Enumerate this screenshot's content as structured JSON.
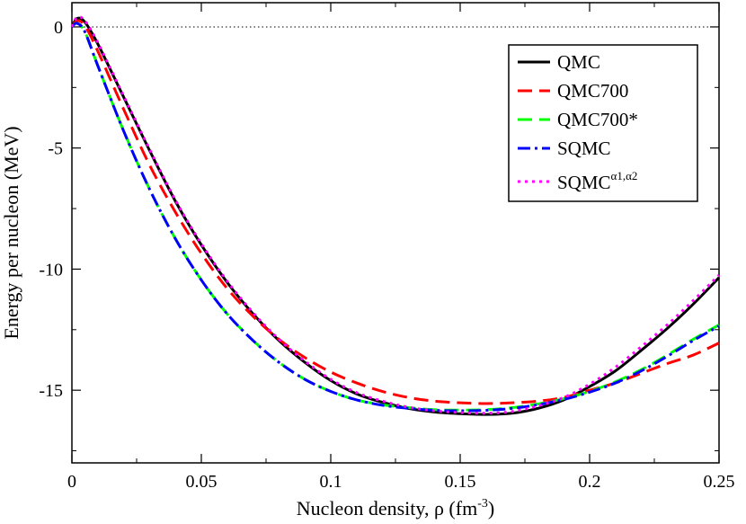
{
  "chart_data": {
    "type": "line",
    "title": "",
    "xlabel": "Nucleon density, ρ (fm",
    "xlabel_sup": "-3",
    "xlabel_close": ")",
    "ylabel": "Energy per nucleon (MeV)",
    "xlim": [
      0,
      0.25
    ],
    "ylim": [
      -18,
      1
    ],
    "x_ticks": [
      0,
      0.05,
      0.1,
      0.15,
      0.2,
      0.25
    ],
    "x_tick_labels": [
      "0",
      "0.05",
      "0.1",
      "0.15",
      "0.2",
      "0.25"
    ],
    "y_ticks": [
      0,
      -5,
      -10,
      -15
    ],
    "y_tick_labels": [
      "0",
      "-5",
      "-10",
      "-15"
    ],
    "reference_line": {
      "y": 0,
      "style": "dotted"
    },
    "legend_position": "top-right",
    "x": [
      0,
      0.002,
      0.005,
      0.01,
      0.02,
      0.03,
      0.04,
      0.05,
      0.06,
      0.07,
      0.08,
      0.09,
      0.1,
      0.11,
      0.12,
      0.13,
      0.14,
      0.15,
      0.16,
      0.17,
      0.18,
      0.19,
      0.2,
      0.21,
      0.22,
      0.23,
      0.24,
      0.25
    ],
    "series": [
      {
        "name": "QMC",
        "color": "#000000",
        "dash": "solid",
        "values": [
          0,
          0.35,
          0.2,
          -0.7,
          -2.9,
          -5.1,
          -7.2,
          -9.0,
          -10.55,
          -11.85,
          -12.95,
          -13.85,
          -14.6,
          -15.15,
          -15.5,
          -15.75,
          -15.9,
          -15.97,
          -16.0,
          -15.95,
          -15.75,
          -15.4,
          -14.85,
          -14.2,
          -13.35,
          -12.45,
          -11.45,
          -10.35
        ]
      },
      {
        "name": "QMC700",
        "color": "#ff0000",
        "dash": "long-dash",
        "values": [
          0,
          0.25,
          0.05,
          -1.0,
          -3.4,
          -5.7,
          -7.65,
          -9.35,
          -10.8,
          -11.95,
          -12.9,
          -13.65,
          -14.25,
          -14.7,
          -15.05,
          -15.3,
          -15.45,
          -15.52,
          -15.55,
          -15.52,
          -15.45,
          -15.3,
          -15.0,
          -14.7,
          -14.3,
          -13.9,
          -13.55,
          -13.05
        ]
      },
      {
        "name": "QMC700*",
        "color": "#00ff00",
        "dash": "long-dash",
        "values": [
          0,
          0.15,
          -0.2,
          -1.6,
          -4.3,
          -6.7,
          -8.75,
          -10.45,
          -11.85,
          -12.95,
          -13.85,
          -14.55,
          -15.05,
          -15.4,
          -15.6,
          -15.72,
          -15.8,
          -15.82,
          -15.8,
          -15.72,
          -15.57,
          -15.35,
          -15.05,
          -14.65,
          -14.15,
          -13.55,
          -12.9,
          -12.3
        ]
      },
      {
        "name": "SQMC",
        "color": "#0000ff",
        "dash": "dash-dot",
        "values": [
          0,
          0.15,
          -0.2,
          -1.6,
          -4.3,
          -6.7,
          -8.75,
          -10.45,
          -11.85,
          -12.95,
          -13.85,
          -14.55,
          -15.05,
          -15.4,
          -15.62,
          -15.75,
          -15.83,
          -15.85,
          -15.83,
          -15.75,
          -15.6,
          -15.38,
          -15.08,
          -14.7,
          -14.2,
          -13.6,
          -12.95,
          -12.35
        ]
      },
      {
        "name": "SQMC",
        "name_sup": "α1,α2",
        "color": "#ff00ff",
        "dash": "dotted",
        "values": [
          0,
          0.4,
          0.25,
          -0.65,
          -2.85,
          -5.05,
          -7.15,
          -8.95,
          -10.5,
          -11.8,
          -12.9,
          -13.8,
          -14.55,
          -15.1,
          -15.45,
          -15.7,
          -15.85,
          -15.92,
          -15.95,
          -15.88,
          -15.65,
          -15.3,
          -14.75,
          -14.05,
          -13.2,
          -12.3,
          -11.3,
          -10.25
        ]
      }
    ]
  }
}
